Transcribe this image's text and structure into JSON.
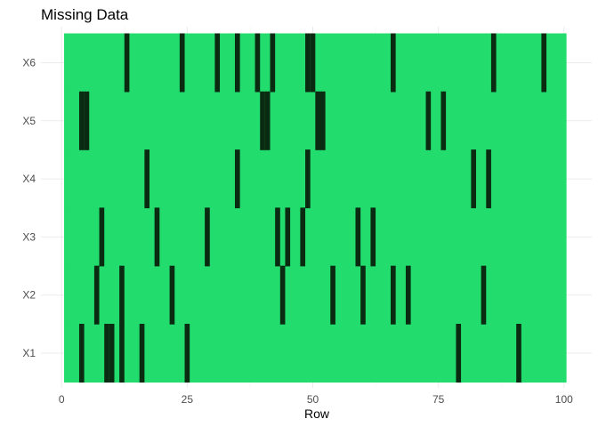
{
  "chart_data": {
    "type": "heatmap",
    "title": "Missing Data",
    "xlabel": "Row",
    "ylabel": "",
    "xlim": [
      0.5,
      100.5
    ],
    "x_ticks": [
      0,
      25,
      50,
      75,
      100
    ],
    "x_tick_labels": [
      "0",
      "25",
      "50",
      "75",
      "100"
    ],
    "variables": [
      "X1",
      "X2",
      "X3",
      "X4",
      "X5",
      "X6"
    ],
    "n_rows": 100,
    "colors": {
      "present": "#22dd6e",
      "missing": "#0a2a12",
      "grid": "#ebebeb"
    },
    "grid": true,
    "legend": "none",
    "missing_rows": {
      "X1": [
        4,
        9,
        10,
        12,
        16,
        25,
        79,
        91
      ],
      "X2": [
        7,
        12,
        22,
        44,
        54,
        60,
        66,
        69,
        84
      ],
      "X3": [
        8,
        19,
        29,
        43,
        45,
        48,
        59,
        62
      ],
      "X4": [
        17,
        35,
        49,
        82,
        85
      ],
      "X5": [
        4,
        5,
        40,
        41,
        51,
        52,
        73,
        76
      ],
      "X6": [
        13,
        24,
        31,
        35,
        39,
        42,
        49,
        50,
        66,
        86,
        96
      ]
    }
  }
}
